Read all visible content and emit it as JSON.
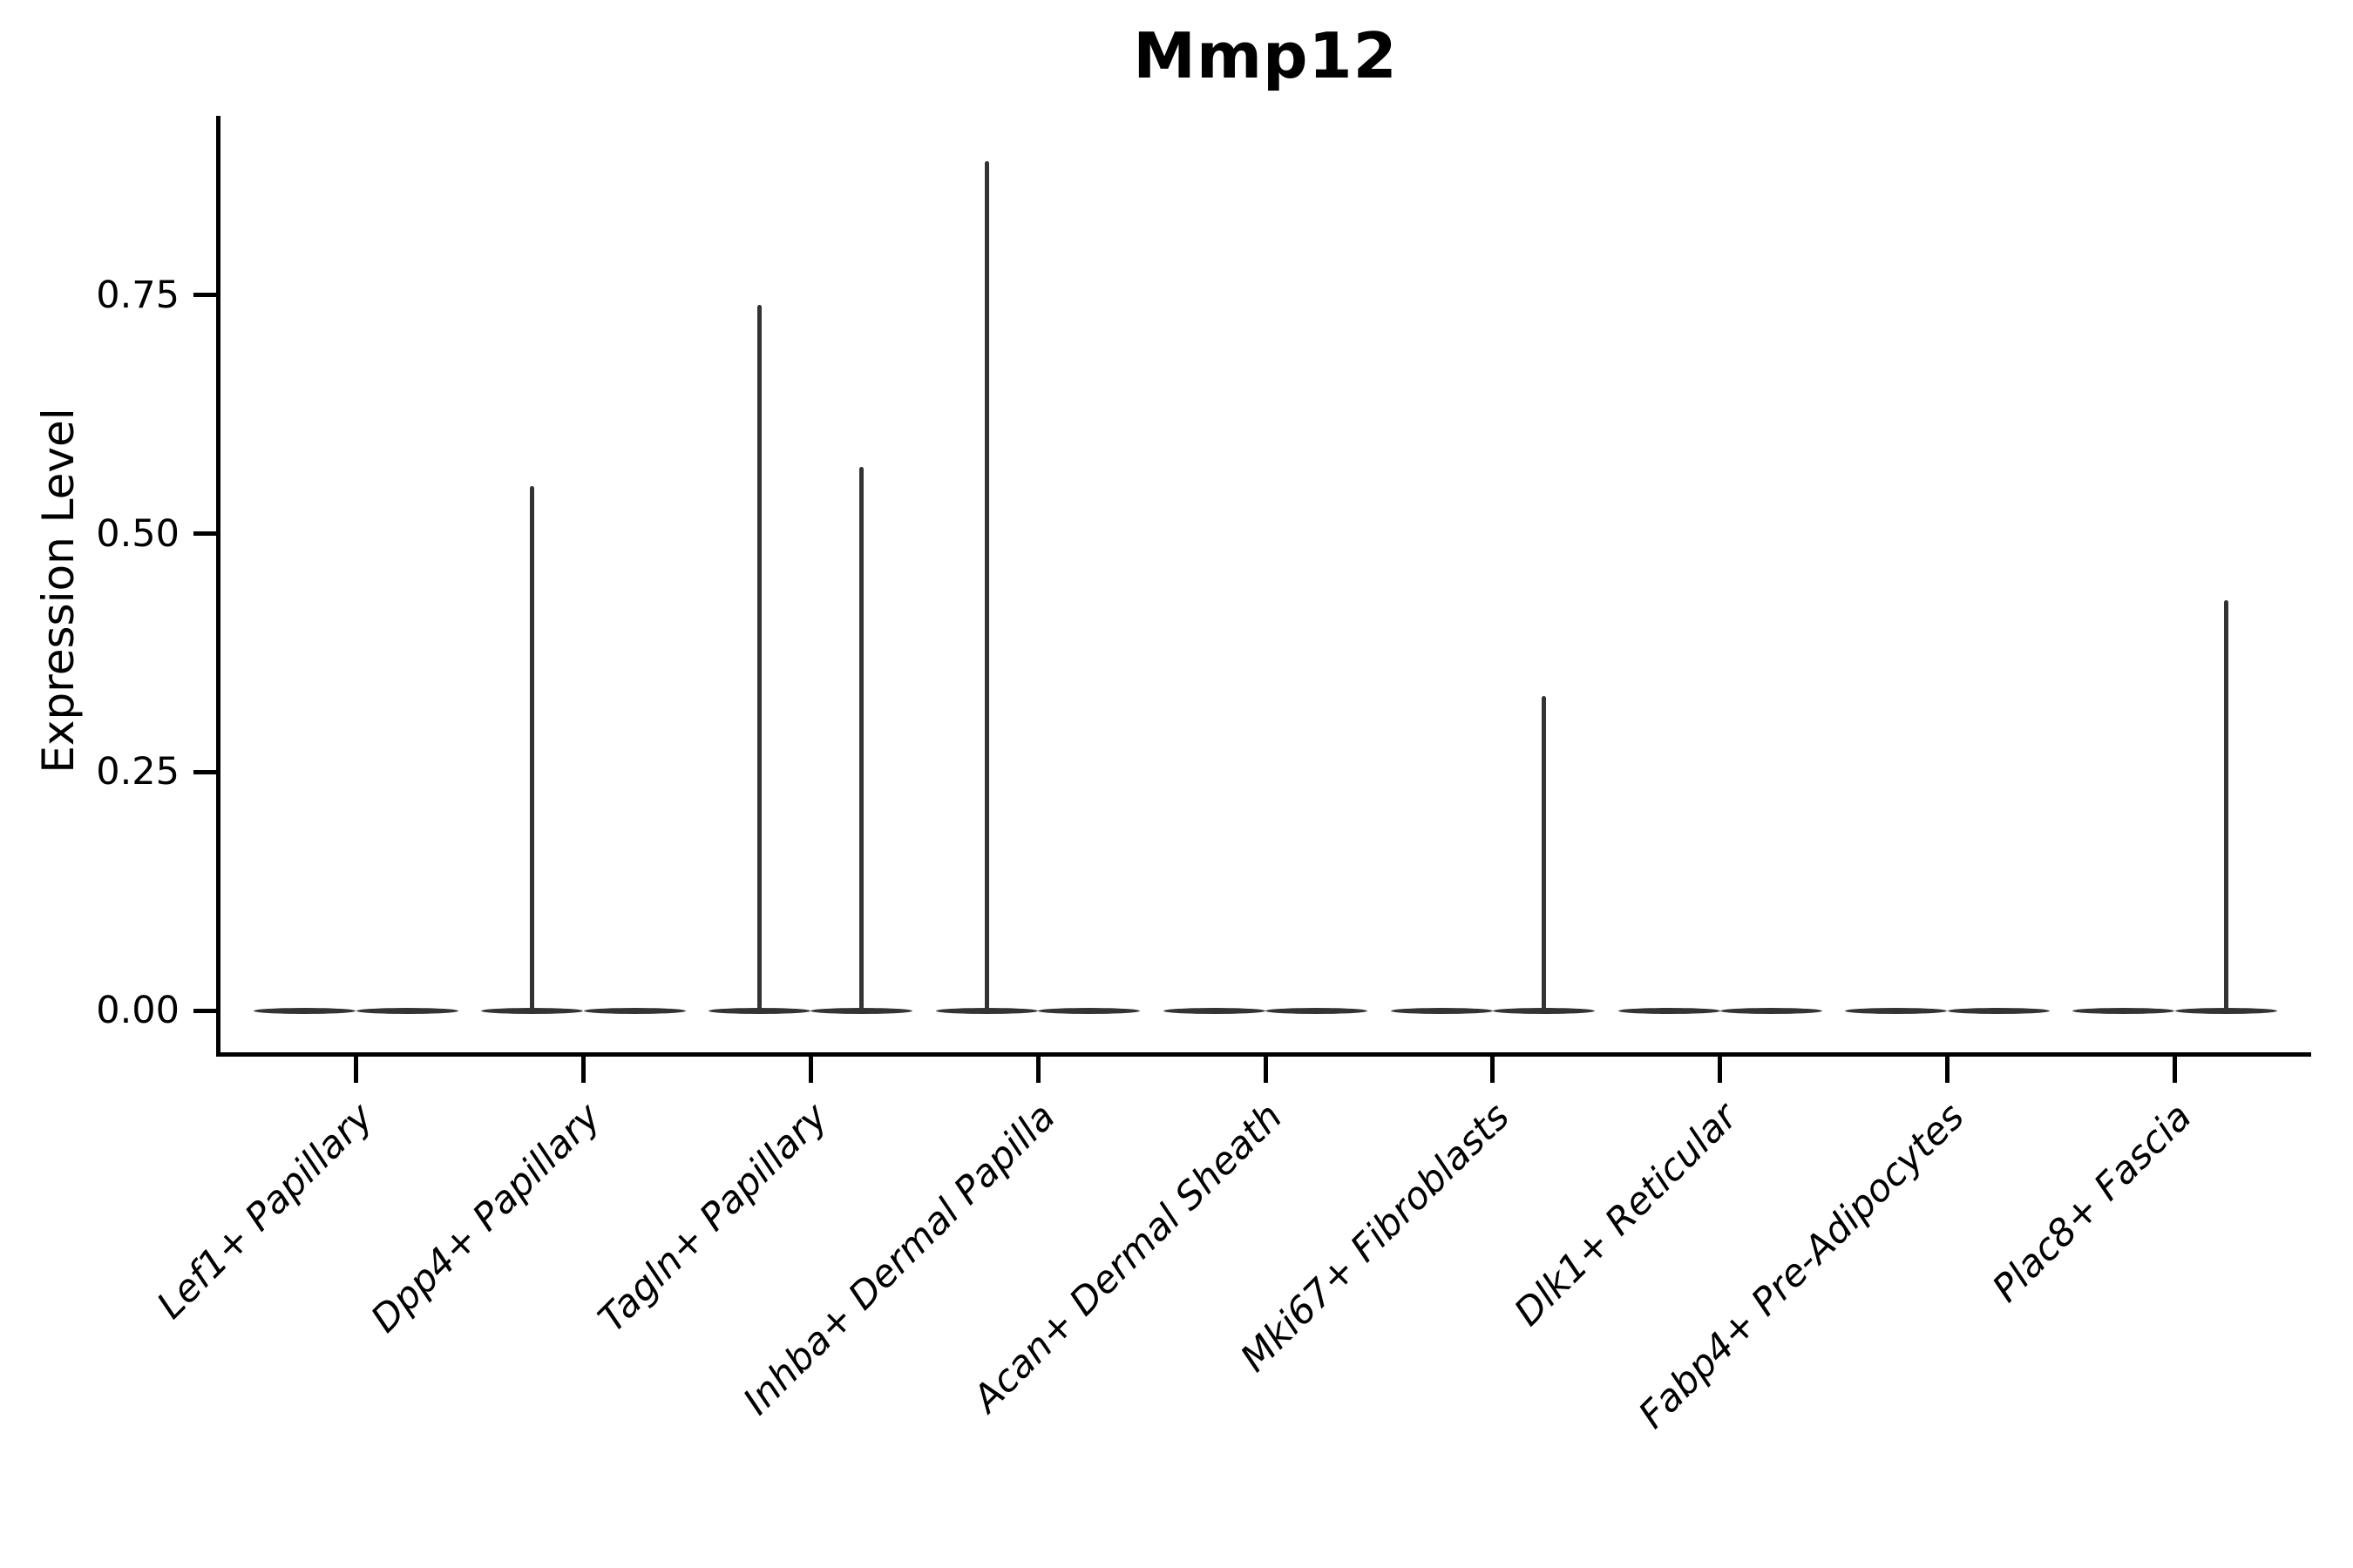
{
  "figure": {
    "title": "Mmp12"
  },
  "colors": {
    "background": "#ffffff",
    "axis": "#000000",
    "text": "#000000",
    "violin_outline": "#333333"
  },
  "chart_data": {
    "type": "violin",
    "title": "Mmp12",
    "ylabel": "Expression Level",
    "xlabel": "",
    "legend_position": "none",
    "grid": false,
    "ylim": [
      -0.046,
      0.938
    ],
    "ytick_labels": [
      "0.00",
      "0.25",
      "0.50",
      "0.75"
    ],
    "ytick_values": [
      0,
      0.25,
      0.5,
      0.75
    ],
    "categories": [
      "Lef1+ Papillary",
      "Dpp4+ Papillary",
      "Tagln+ Papillary",
      "Inhba+ Dermal Papilla",
      "Acan+ Dermal Sheath",
      "Mki67+ Fibroblasts",
      "Dlk1+ Reticular",
      "Fabp4+ Pre-Adipocytes",
      "Plac8+ Fascia"
    ],
    "violins": [
      {
        "category": "Lef1+ Papillary",
        "baseline_value": 0,
        "groups": [
          {
            "position": "left",
            "peak": 0
          },
          {
            "position": "right",
            "peak": 0
          }
        ]
      },
      {
        "category": "Dpp4+ Papillary",
        "baseline_value": 0,
        "groups": [
          {
            "position": "left",
            "peak": 0.55
          },
          {
            "position": "right",
            "peak": 0
          }
        ]
      },
      {
        "category": "Tagln+ Papillary",
        "baseline_value": 0,
        "groups": [
          {
            "position": "left",
            "peak": 0.74
          },
          {
            "position": "right",
            "peak": 0.57
          }
        ]
      },
      {
        "category": "Inhba+ Dermal Papilla",
        "baseline_value": 0,
        "groups": [
          {
            "position": "left",
            "peak": 0.89
          },
          {
            "position": "right",
            "peak": 0
          }
        ]
      },
      {
        "category": "Acan+ Dermal Sheath",
        "baseline_value": 0,
        "groups": [
          {
            "position": "left",
            "peak": 0
          },
          {
            "position": "right",
            "peak": 0
          }
        ]
      },
      {
        "category": "Mki67+ Fibroblasts",
        "baseline_value": 0,
        "groups": [
          {
            "position": "left",
            "peak": 0
          },
          {
            "position": "right",
            "peak": 0.33
          }
        ]
      },
      {
        "category": "Dlk1+ Reticular",
        "baseline_value": 0,
        "groups": [
          {
            "position": "left",
            "peak": 0
          },
          {
            "position": "right",
            "peak": 0
          }
        ]
      },
      {
        "category": "Fabp4+ Pre-Adipocytes",
        "baseline_value": 0,
        "groups": [
          {
            "position": "left",
            "peak": 0
          },
          {
            "position": "right",
            "peak": 0
          }
        ]
      },
      {
        "category": "Plac8+ Fascia",
        "baseline_value": 0,
        "groups": [
          {
            "position": "left",
            "peak": 0
          },
          {
            "position": "right",
            "peak": 0.43
          }
        ]
      }
    ]
  }
}
